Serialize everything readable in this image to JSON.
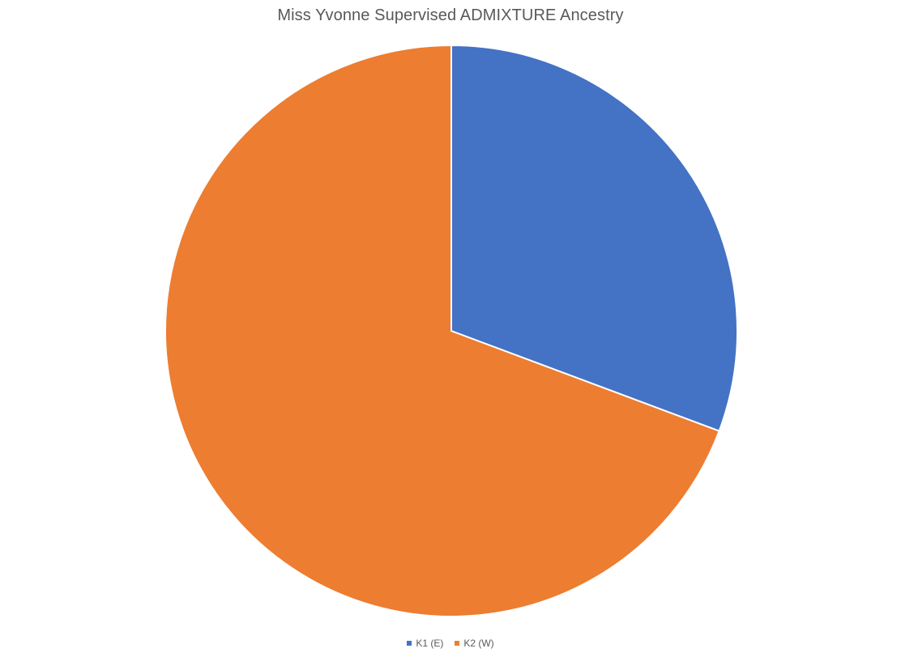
{
  "chart_data": {
    "type": "pie",
    "title": "Miss Yvonne Supervised ADMIXTURE Ancestry",
    "legend_position": "bottom",
    "slices": [
      {
        "label": "K1 (E)",
        "value": 30.7,
        "color": "#4472C4"
      },
      {
        "label": "K2 (W)",
        "value": 69.3,
        "color": "#ED7D31"
      }
    ]
  }
}
